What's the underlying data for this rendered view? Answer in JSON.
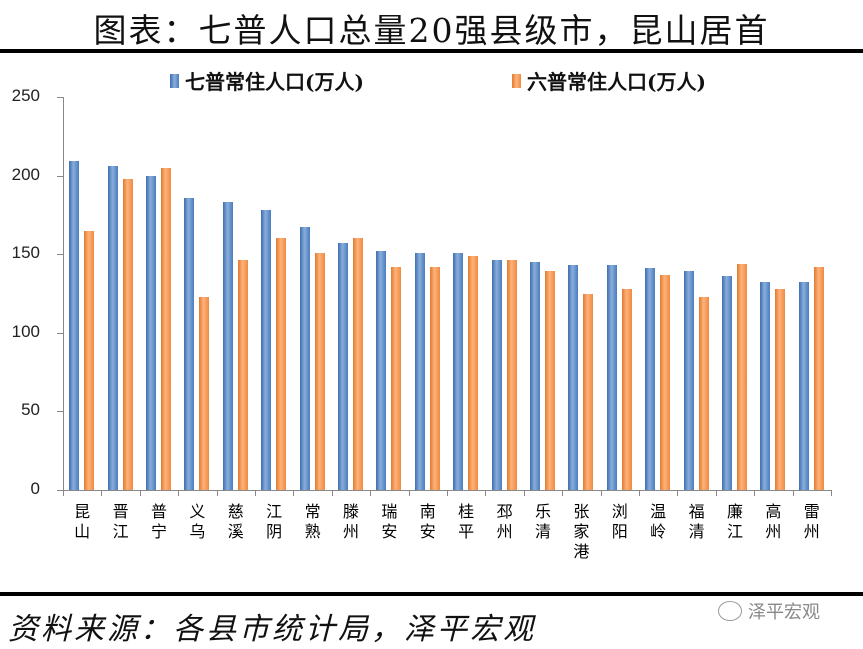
{
  "header": {
    "title": "图表：七普人口总量20强县级市，昆山居首"
  },
  "legend": [
    {
      "label": "七普常住人口(万人)",
      "color": "#4f81bd"
    },
    {
      "label": "六普常住人口(万人)",
      "color": "#f79646"
    }
  ],
  "footer": {
    "source": "资料来源：各县市统计局，泽平宏观",
    "watermark": "泽平宏观"
  },
  "y_ticks": [
    "250",
    "200",
    "150",
    "100",
    "50",
    "0"
  ],
  "chart_data": {
    "type": "bar",
    "title": "图表：七普人口总量20强县级市，昆山居首",
    "xlabel": "",
    "ylabel": "",
    "ylim": [
      0,
      250
    ],
    "yticks": [
      0,
      50,
      100,
      150,
      200,
      250
    ],
    "grid": false,
    "legend_position": "top",
    "categories": [
      "昆山",
      "晋江",
      "普宁",
      "义乌",
      "慈溪",
      "江阴",
      "常熟",
      "滕州",
      "瑞安",
      "南安",
      "桂平",
      "邳州",
      "乐清",
      "张家港",
      "浏阳",
      "温岭",
      "福清",
      "廉江",
      "高州",
      "雷州"
    ],
    "series": [
      {
        "name": "七普常住人口(万人)",
        "color": "#4f81bd",
        "values": [
          209,
          206,
          200,
          186,
          183,
          178,
          167,
          157,
          152,
          151,
          151,
          146,
          145,
          143,
          143,
          141,
          139,
          136,
          132,
          132
        ]
      },
      {
        "name": "六普常住人口(万人)",
        "color": "#f79646",
        "values": [
          165,
          198,
          205,
          123,
          146,
          160,
          151,
          160,
          142,
          142,
          149,
          146,
          139,
          125,
          128,
          137,
          123,
          144,
          128,
          142
        ]
      }
    ]
  }
}
